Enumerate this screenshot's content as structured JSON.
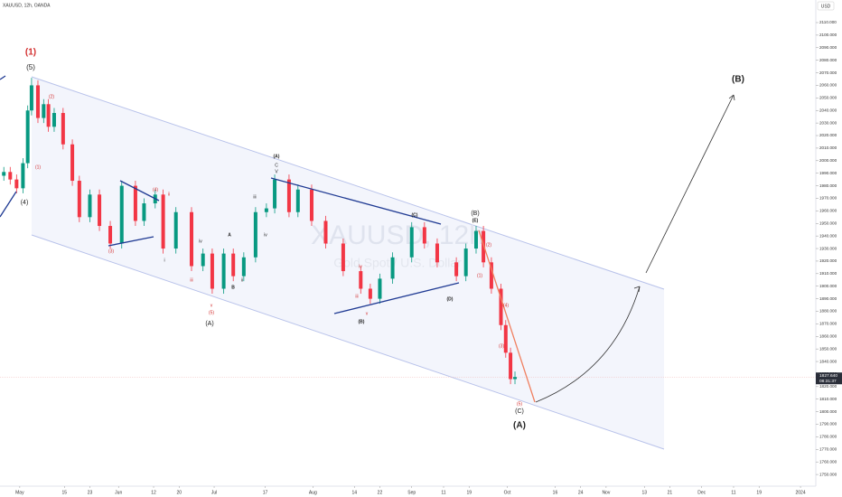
{
  "chart_data": {
    "type": "candlestick",
    "title": "XAUUSD, 12h, OANDA",
    "currency": "USD",
    "watermark": "XAUUSD, 12h",
    "watermark_sub": "Gold Spot / U.S. Dollar",
    "up_color": "#089981",
    "down_color": "#f23645",
    "x": [
      -5,
      -3,
      -1,
      1,
      2.5,
      3.7,
      5.7,
      7.5,
      9,
      10.8,
      13.6,
      16.5,
      18.7,
      22,
      25,
      28.4,
      32,
      36.3,
      39,
      42.5,
      45,
      49,
      53.9,
      57.5,
      60.4,
      64,
      67,
      70.3,
      74,
      77.4,
      80,
      84.5,
      87.3,
      91.6,
      96,
      101.5,
      107,
      110,
      113,
      117,
      123,
      127,
      131,
      137,
      140,
      143.2,
      145.5,
      148,
      151,
      152.5,
      154,
      155.4
    ],
    "open": [
      1988,
      1991,
      1985,
      1978,
      1998,
      2040,
      2060,
      2034,
      2045,
      2027,
      2038,
      2013,
      1984,
      1955,
      1973,
      1948,
      1934,
      1980,
      1952,
      1966,
      1973,
      1930,
      1959,
      1916,
      1926,
      1898,
      1926,
      1908,
      1923,
      1959,
      1962,
      1985,
      1959,
      1977,
      1952,
      1934,
      1912,
      1898,
      1890,
      1906,
      1923,
      1947,
      1934,
      1919,
      1908,
      1930,
      1944,
      1919,
      1898,
      1869,
      1847,
      1826
    ],
    "high": [
      1995,
      1995,
      1989,
      2002,
      2044,
      2066,
      2064,
      2049,
      2049,
      2042,
      2042,
      2017,
      1988,
      1977,
      1977,
      1952,
      1984,
      1984,
      1970,
      1977,
      1977,
      1963,
      1963,
      1930,
      1930,
      1930,
      1930,
      1927,
      1963,
      1966,
      1989,
      1989,
      1981,
      1981,
      1956,
      1938,
      1916,
      1902,
      1910,
      1927,
      1951,
      1951,
      1938,
      1923,
      1934,
      1948,
      1948,
      1923,
      1902,
      1873,
      1851,
      1832
    ],
    "low": [
      1984,
      1981,
      1974,
      1974,
      1994,
      2036,
      2030,
      2030,
      2023,
      2023,
      2009,
      1980,
      1951,
      1951,
      1944,
      1930,
      1930,
      1948,
      1948,
      1962,
      1926,
      1926,
      1912,
      1912,
      1894,
      1894,
      1904,
      1904,
      1919,
      1955,
      1958,
      1955,
      1955,
      1948,
      1930,
      1908,
      1894,
      1886,
      1886,
      1902,
      1919,
      1930,
      1915,
      1904,
      1904,
      1926,
      1915,
      1894,
      1865,
      1843,
      1822,
      1822
    ],
    "close": [
      1991,
      1985,
      1978,
      1998,
      2040,
      2060,
      2034,
      2045,
      2027,
      2038,
      2013,
      1984,
      1955,
      1973,
      1948,
      1934,
      1980,
      1952,
      1966,
      1973,
      1930,
      1959,
      1916,
      1926,
      1898,
      1926,
      1908,
      1923,
      1959,
      1962,
      1985,
      1959,
      1977,
      1952,
      1934,
      1912,
      1898,
      1890,
      1906,
      1923,
      1947,
      1934,
      1919,
      1908,
      1930,
      1944,
      1919,
      1898,
      1869,
      1847,
      1826,
      1827.64
    ],
    "last_price": {
      "value": 1827.64,
      "label": "1827.640"
    },
    "countdown": "08:31:37",
    "xlim": [
      -6.2,
      249.8
    ],
    "xticks": [
      {
        "value": 0,
        "label": "May"
      },
      {
        "value": 14,
        "label": "15"
      },
      {
        "value": 22,
        "label": "23"
      },
      {
        "value": 31,
        "label": "Jun"
      },
      {
        "value": 42,
        "label": "12"
      },
      {
        "value": 50,
        "label": "20"
      },
      {
        "value": 61,
        "label": "Jul"
      },
      {
        "value": 77,
        "label": "17"
      },
      {
        "value": 92,
        "label": "Aug"
      },
      {
        "value": 105,
        "label": "14"
      },
      {
        "value": 113,
        "label": "22"
      },
      {
        "value": 123,
        "label": "Sep"
      },
      {
        "value": 133,
        "label": "11"
      },
      {
        "value": 141,
        "label": "19"
      },
      {
        "value": 153,
        "label": "Oct"
      },
      {
        "value": 168,
        "label": "16"
      },
      {
        "value": 176,
        "label": "24"
      },
      {
        "value": 184,
        "label": "Nov"
      },
      {
        "value": 196,
        "label": "13"
      },
      {
        "value": 204,
        "label": "21"
      },
      {
        "value": 214,
        "label": "Dec"
      },
      {
        "value": 224,
        "label": "11"
      },
      {
        "value": 232,
        "label": "19"
      },
      {
        "value": 245,
        "label": "2024"
      }
    ],
    "ylim": [
      1740.7,
      2128
    ],
    "yticks": [
      {
        "value": 1750,
        "label": "1750.000"
      },
      {
        "value": 1760,
        "label": "1760.000"
      },
      {
        "value": 1770,
        "label": "1770.000"
      },
      {
        "value": 1780,
        "label": "1780.000"
      },
      {
        "value": 1790,
        "label": "1790.000"
      },
      {
        "value": 1800,
        "label": "1800.000"
      },
      {
        "value": 1810,
        "label": "1810.000"
      },
      {
        "value": 1820,
        "label": "1820.000"
      },
      {
        "value": 1830,
        "label": "1830.000"
      },
      {
        "value": 1840,
        "label": "1840.000"
      },
      {
        "value": 1850,
        "label": "1850.000"
      },
      {
        "value": 1860,
        "label": "1860.000"
      },
      {
        "value": 1870,
        "label": "1870.000"
      },
      {
        "value": 1880,
        "label": "1880.000"
      },
      {
        "value": 1890,
        "label": "1890.000"
      },
      {
        "value": 1900,
        "label": "1900.000"
      },
      {
        "value": 1910,
        "label": "1910.000"
      },
      {
        "value": 1920,
        "label": "1920.000"
      },
      {
        "value": 1930,
        "label": "1930.000"
      },
      {
        "value": 1940,
        "label": "1940.000"
      },
      {
        "value": 1950,
        "label": "1950.000"
      },
      {
        "value": 1960,
        "label": "1960.000"
      },
      {
        "value": 1970,
        "label": "1970.000"
      },
      {
        "value": 1980,
        "label": "1980.000"
      },
      {
        "value": 1990,
        "label": "1990.000"
      },
      {
        "value": 2000,
        "label": "2000.000"
      },
      {
        "value": 2010,
        "label": "2010.000"
      },
      {
        "value": 2020,
        "label": "2020.000"
      },
      {
        "value": 2030,
        "label": "2030.000"
      },
      {
        "value": 2040,
        "label": "2040.000"
      },
      {
        "value": 2050,
        "label": "2050.000"
      },
      {
        "value": 2060,
        "label": "2060.000"
      },
      {
        "value": 2070,
        "label": "2070.000"
      },
      {
        "value": 2080,
        "label": "2080.000"
      },
      {
        "value": 2090,
        "label": "2090.000"
      },
      {
        "value": 2100,
        "label": "2100.000"
      },
      {
        "value": 2110,
        "label": "2110.000"
      }
    ],
    "annotations": [
      "(1)",
      "(5)",
      "(4)",
      "(2)",
      "(1)",
      "(3)",
      "(4)",
      "v",
      "(5)",
      "(A)",
      "i",
      "ii",
      "iii",
      "iv",
      "A",
      "B",
      "ii",
      "iii",
      "iv",
      "(A)",
      "C",
      "V",
      "iii",
      "iv",
      "v",
      "(B)",
      "(C)",
      "(D)",
      "(B)",
      "(E)",
      "(2)",
      "(1)",
      "(4)",
      "(3)",
      "(5)",
      "(C)",
      "(A)",
      "(B)"
    ]
  }
}
